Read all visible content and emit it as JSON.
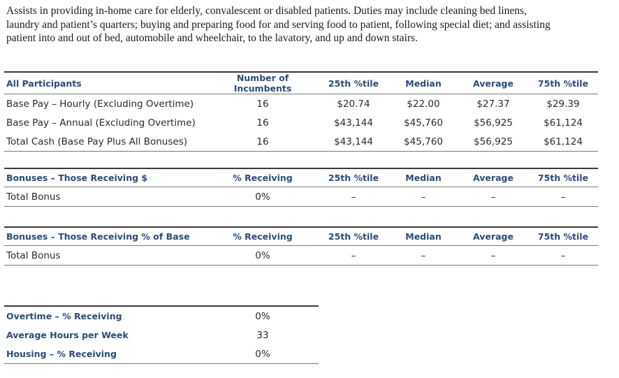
{
  "description": {
    "line1": "Assists in providing in-home care for elderly, convalescent or disabled patients. Duties may include cleaning bed linens,",
    "line2": "laundry and patient’s quarters; buying and preparing food for and serving food to patient, following special diet; and assisting",
    "line3": "patient into and out of bed, automobile and wheelchair, to the lavatory, and up and down stairs."
  },
  "participants": {
    "header": [
      "All Participants",
      "Number of Incumbents",
      "25th %tile",
      "Median",
      "Average",
      "75th %tile"
    ],
    "rows": [
      [
        "Base Pay – Hourly (Excluding Overtime)",
        "16",
        "$20.74",
        "$22.00",
        "$27.37",
        "$29.39"
      ],
      [
        "Base Pay – Annual (Excluding Overtime)",
        "16",
        "$43,144",
        "$45,760",
        "$56,925",
        "$61,124"
      ],
      [
        "Total Cash (Base Pay Plus All Bonuses)",
        "16",
        "$43,144",
        "$45,760",
        "$56,925",
        "$61,124"
      ]
    ]
  },
  "bonus_dollars": {
    "header": [
      "Bonuses – Those Receiving $",
      "% Receiving",
      "25th %tile",
      "Median",
      "Average",
      "75th %tile"
    ],
    "rows": [
      [
        "Total Bonus",
        "0%",
        "–",
        "–",
        "–",
        "–"
      ]
    ]
  },
  "bonus_percent": {
    "header": [
      "Bonuses – Those Receiving % of Base",
      "% Receiving",
      "25th %tile",
      "Median",
      "Average",
      "75th %tile"
    ],
    "rows": [
      [
        "Total Bonus",
        "0%",
        "–",
        "–",
        "–",
        "–"
      ]
    ]
  },
  "other": {
    "rows": [
      [
        "Overtime – % Receiving",
        "0%"
      ],
      [
        "Average Hours per Week",
        "33"
      ],
      [
        "Housing – % Receiving",
        "0%"
      ]
    ]
  }
}
